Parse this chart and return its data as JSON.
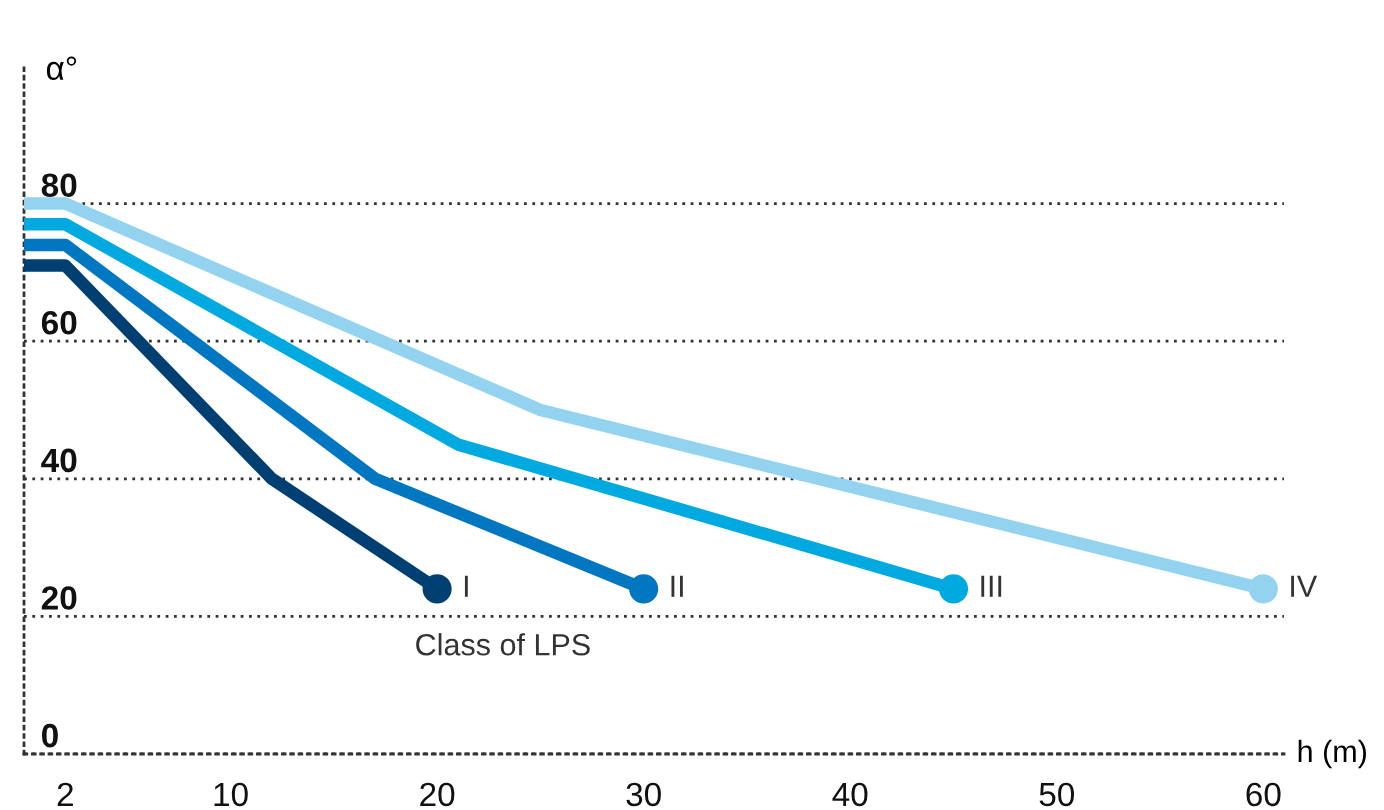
{
  "chart_data": {
    "type": "line",
    "xlabel": "h (m)",
    "ylabel": "α°",
    "series": [
      {
        "name": "I",
        "color": "#003f72",
        "x": [
          0,
          2,
          12,
          20
        ],
        "values": [
          71,
          71,
          40,
          24
        ]
      },
      {
        "name": "II",
        "color": "#0077c0",
        "x": [
          0,
          2,
          17,
          30
        ],
        "values": [
          74,
          74,
          40,
          24
        ]
      },
      {
        "name": "III",
        "color": "#00a9e0",
        "x": [
          0,
          2,
          21,
          45
        ],
        "values": [
          77,
          77,
          45,
          24
        ]
      },
      {
        "name": "IV",
        "color": "#93d3ef",
        "x": [
          0,
          2,
          25,
          60
        ],
        "values": [
          80,
          80,
          50,
          24
        ]
      },
      {
        "type": "scatter",
        "x": [
          20,
          30,
          45,
          60
        ],
        "values": [
          24,
          24,
          24,
          24
        ],
        "colors": [
          "#003f72",
          "#0077c0",
          "#00a9e0",
          "#93d3ef"
        ],
        "marker": "circle"
      }
    ],
    "annotations": [
      "Class of LPS"
    ],
    "xlim": [
      0,
      61
    ],
    "ylim": [
      0,
      100
    ],
    "xticks": [
      2,
      10,
      20,
      30,
      40,
      50,
      60
    ],
    "yticks": [
      0,
      20,
      40,
      60,
      80
    ],
    "grid": "y",
    "legend": false,
    "line_style": "solid"
  }
}
